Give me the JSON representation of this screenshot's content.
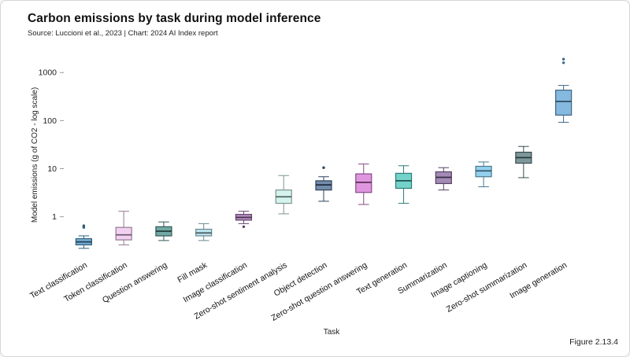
{
  "header": {
    "title": "Carbon emissions by task during model inference",
    "subtitle": "Source: Luccioni et al., 2023 | Chart: 2024 AI Index report"
  },
  "footer": {
    "figure_label": "Figure 2.13.4"
  },
  "chart_data": {
    "type": "box",
    "title": "Carbon emissions by task during model inference",
    "xlabel": "Task",
    "ylabel": "Model emissions (g of CO2 - log scale)",
    "yscale": "log",
    "ylim": [
      0.15,
      2400
    ],
    "yticks": [
      1,
      10,
      100,
      1000
    ],
    "grid": false,
    "legend": "none",
    "series": [
      {
        "name": "Text classification",
        "color": "#4f97c7",
        "low": 0.22,
        "q1": 0.26,
        "median": 0.3,
        "q3": 0.35,
        "high": 0.4,
        "outliers": [
          0.6,
          0.65
        ]
      },
      {
        "name": "Token classification",
        "color": "#eec3ec",
        "low": 0.26,
        "q1": 0.33,
        "median": 0.42,
        "q3": 0.6,
        "high": 1.3,
        "outliers": []
      },
      {
        "name": "Question answering",
        "color": "#4b8f8a",
        "low": 0.32,
        "q1": 0.4,
        "median": 0.5,
        "q3": 0.62,
        "high": 0.78,
        "outliers": []
      },
      {
        "name": "Fill mask",
        "color": "#aadbe8",
        "low": 0.32,
        "q1": 0.4,
        "median": 0.46,
        "q3": 0.55,
        "high": 0.72,
        "outliers": []
      },
      {
        "name": "Image classification",
        "color": "#a06fae",
        "low": 0.72,
        "q1": 0.85,
        "median": 0.97,
        "q3": 1.12,
        "high": 1.3,
        "outliers": [
          0.62
        ]
      },
      {
        "name": "Zero-shot sentiment analysis",
        "color": "#c8efe7",
        "low": 1.15,
        "q1": 1.9,
        "median": 2.6,
        "q3": 3.6,
        "high": 7.2,
        "outliers": []
      },
      {
        "name": "Object detection",
        "color": "#4a6b94",
        "low": 2.1,
        "q1": 3.6,
        "median": 4.6,
        "q3": 5.6,
        "high": 6.8,
        "outliers": [
          10.5
        ]
      },
      {
        "name": "Zero-shot question answering",
        "color": "#d678d6",
        "low": 1.8,
        "q1": 3.2,
        "median": 5.2,
        "q3": 7.8,
        "high": 12.5,
        "outliers": []
      },
      {
        "name": "Text generation",
        "color": "#4cc6bc",
        "low": 1.9,
        "q1": 3.9,
        "median": 5.6,
        "q3": 8.0,
        "high": 11.5,
        "outliers": []
      },
      {
        "name": "Summarization",
        "color": "#8a6aa0",
        "low": 3.6,
        "q1": 4.9,
        "median": 6.6,
        "q3": 8.6,
        "high": 10.5,
        "outliers": []
      },
      {
        "name": "Image captioning",
        "color": "#74c3e8",
        "low": 4.2,
        "q1": 6.8,
        "median": 9.0,
        "q3": 11.2,
        "high": 13.8,
        "outliers": []
      },
      {
        "name": "Zero-shot summarization",
        "color": "#587a7e",
        "low": 6.5,
        "q1": 13.0,
        "median": 17.0,
        "q3": 22.0,
        "high": 29.0,
        "outliers": []
      },
      {
        "name": "Image generation",
        "color": "#63a5d6",
        "low": 92.0,
        "q1": 130.0,
        "median": 250.0,
        "q3": 430.0,
        "high": 540.0,
        "outliers": [
          1600,
          1900
        ]
      }
    ]
  }
}
